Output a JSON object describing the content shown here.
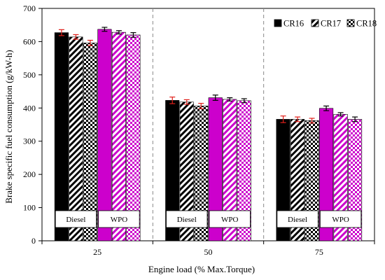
{
  "chart_data": {
    "type": "bar",
    "categories": [
      "25",
      "50",
      "75"
    ],
    "xlabel": "Engine load (% Max.Torque)",
    "ylabel": "Brake specific fuel consumption (g/kW-h)",
    "ylim": [
      0,
      700
    ],
    "yticks": [
      0,
      100,
      200,
      300,
      400,
      500,
      600,
      700
    ],
    "grid": false,
    "legend_position": "top-right",
    "legend": [
      "CR16",
      "CR17",
      "CR18"
    ],
    "group_labels": [
      "Diesel",
      "WPO"
    ],
    "series": [
      {
        "name": "Diesel CR16",
        "fuel": "Diesel",
        "cr": "CR16",
        "values": [
          627,
          423,
          366
        ],
        "errors": [
          9,
          10,
          10
        ]
      },
      {
        "name": "Diesel CR17",
        "fuel": "Diesel",
        "cr": "CR17",
        "values": [
          614,
          418,
          366
        ],
        "errors": [
          7,
          7,
          7
        ]
      },
      {
        "name": "Diesel CR18",
        "fuel": "Diesel",
        "cr": "CR18",
        "values": [
          596,
          406,
          362
        ],
        "errors": [
          8,
          8,
          7
        ]
      },
      {
        "name": "WPO CR16",
        "fuel": "WPO",
        "cr": "CR16",
        "values": [
          637,
          431,
          399
        ],
        "errors": [
          6,
          8,
          7
        ]
      },
      {
        "name": "WPO CR17",
        "fuel": "WPO",
        "cr": "CR17",
        "values": [
          628,
          426,
          381
        ],
        "errors": [
          5,
          5,
          5
        ]
      },
      {
        "name": "WPO CR18",
        "fuel": "WPO",
        "cr": "CR18",
        "values": [
          620,
          422,
          366
        ],
        "errors": [
          7,
          6,
          7
        ]
      }
    ],
    "colors": {
      "diesel": "#000000",
      "wpo": "#cc00cc",
      "error_bar_diesel": "#e0201b",
      "error_bar_wpo": "#000000",
      "separator": "#888888"
    }
  }
}
